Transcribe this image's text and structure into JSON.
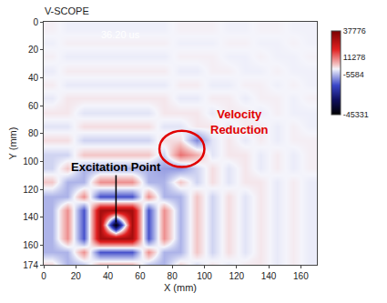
{
  "chart_data": {
    "type": "heatmap",
    "title": "V-SCOPE",
    "x_label": "X (mm)",
    "y_label": "Y (mm)",
    "x": [
      5,
      15,
      25,
      35,
      45,
      55,
      65,
      75,
      85,
      95,
      105,
      115,
      125,
      135,
      145,
      155,
      165
    ],
    "y": [
      5,
      15,
      25,
      35,
      45,
      55,
      65,
      75,
      85,
      95,
      105,
      115,
      125,
      135,
      145,
      155,
      165,
      175
    ],
    "z": [
      [
        400,
        -500,
        -500,
        -500,
        -500,
        -500,
        -500,
        -500,
        400,
        400,
        400,
        -400,
        -400,
        300,
        300,
        -300,
        -300
      ],
      [
        -500,
        500,
        500,
        500,
        500,
        500,
        500,
        500,
        -500,
        -500,
        -500,
        400,
        400,
        -400,
        -400,
        300,
        -300
      ],
      [
        500,
        -800,
        -800,
        -800,
        -800,
        -800,
        -800,
        -800,
        500,
        500,
        500,
        -500,
        -500,
        400,
        -400,
        -400,
        300
      ],
      [
        -800,
        800,
        800,
        800,
        800,
        800,
        800,
        800,
        -800,
        -800,
        500,
        500,
        -500,
        -500,
        400,
        -400,
        -400
      ],
      [
        800,
        -1000,
        -1000,
        -1000,
        -1000,
        -1000,
        -1000,
        -1000,
        800,
        800,
        -800,
        -800,
        500,
        500,
        -500,
        400,
        -400
      ],
      [
        -1000,
        1200,
        1200,
        1200,
        1200,
        1200,
        1200,
        1200,
        -1000,
        -1000,
        800,
        800,
        -800,
        500,
        500,
        -500,
        400
      ],
      [
        1200,
        1200,
        -1500,
        -1500,
        -1500,
        -1500,
        -1500,
        1200,
        1200,
        1200,
        -1000,
        800,
        800,
        -800,
        500,
        -500,
        -500
      ],
      [
        -1500,
        -1500,
        2000,
        2000,
        2000,
        2000,
        2000,
        -1500,
        -1500,
        1200,
        1200,
        -1000,
        800,
        800,
        -800,
        500,
        -500
      ],
      [
        2000,
        2000,
        -3000,
        -3000,
        -3000,
        -3000,
        -3000,
        2000,
        2000,
        -10000,
        -1500,
        1200,
        -1000,
        800,
        -800,
        500,
        500
      ],
      [
        -3000,
        -3000,
        4000,
        4000,
        4000,
        4000,
        4000,
        -3000,
        12000,
        6000,
        -1500,
        1200,
        1200,
        -1000,
        800,
        -800,
        500
      ],
      [
        -3000,
        4000,
        -6000,
        -6000,
        -6000,
        -6000,
        -6000,
        -8000,
        -9000,
        -3000,
        2000,
        -1500,
        1200,
        -1000,
        800,
        -800,
        500
      ],
      [
        4000,
        -6000,
        -6000,
        9000,
        9000,
        9000,
        -6000,
        -6000,
        4000,
        -3000,
        2000,
        -1500,
        1200,
        1200,
        -1000,
        800,
        -800
      ],
      [
        -6000,
        -6000,
        9000,
        -15000,
        -15000,
        -15000,
        9000,
        -6000,
        -6000,
        4000,
        -3000,
        2000,
        -1500,
        1200,
        -1000,
        800,
        -800
      ],
      [
        -6000,
        9000,
        -15000,
        30000,
        30000,
        30000,
        -15000,
        9000,
        -6000,
        4000,
        -3000,
        2000,
        -1500,
        1200,
        -1000,
        800,
        -800
      ],
      [
        -6000,
        9000,
        -15000,
        30000,
        -45000,
        30000,
        -15000,
        9000,
        -6000,
        4000,
        -3000,
        2000,
        -1500,
        1200,
        -1000,
        800,
        -800
      ],
      [
        -6000,
        9000,
        -15000,
        30000,
        30000,
        30000,
        -15000,
        9000,
        -6000,
        4000,
        -3000,
        2000,
        -1500,
        1200,
        -1000,
        800,
        -800
      ],
      [
        -6000,
        -6000,
        9000,
        -15000,
        -15000,
        -15000,
        9000,
        -6000,
        -6000,
        4000,
        -3000,
        2000,
        -1500,
        1200,
        -1000,
        800,
        -800
      ],
      [
        4000,
        -6000,
        -6000,
        9000,
        9000,
        9000,
        -6000,
        -6000,
        4000,
        -3000,
        2000,
        -1500,
        1200,
        1200,
        -1000,
        800,
        -800
      ]
    ],
    "xlim": [
      0,
      170
    ],
    "ylim": [
      174,
      0
    ],
    "xticks": [
      0,
      20,
      40,
      60,
      80,
      100,
      120,
      140,
      160
    ],
    "yticks": [
      0,
      20,
      40,
      60,
      80,
      100,
      120,
      140,
      160,
      174
    ],
    "zlim": [
      -45331,
      37776
    ],
    "colorbar_ticks": [
      37776,
      11278,
      -5584,
      -45331
    ],
    "annotations": [
      {
        "text": "36.20 us",
        "x": 48,
        "y": 9,
        "color": "#ffffff"
      },
      {
        "text": "Excitation Point",
        "x": 45,
        "y": 104,
        "point": [
          45,
          145
        ],
        "color": "#000000"
      },
      {
        "text": "Velocity Reduction",
        "x": 122,
        "y": 72,
        "color": "#e00000",
        "ellipse": {
          "x0": 72,
          "x1": 100,
          "y0": 78,
          "y1": 104
        }
      }
    ]
  }
}
